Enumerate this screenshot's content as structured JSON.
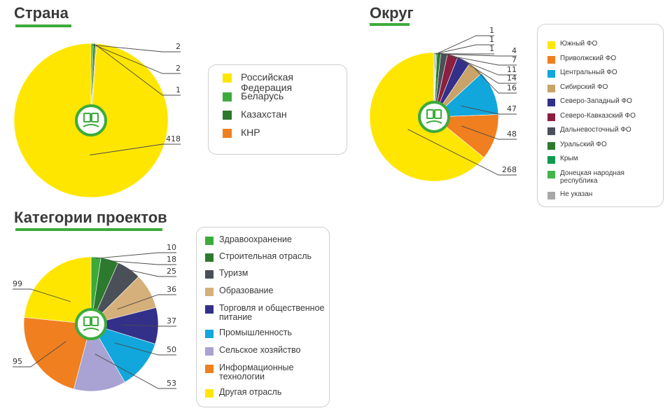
{
  "titles": {
    "country": "Страна",
    "district": "Округ",
    "category": "Категории проектов"
  },
  "chart_data": [
    {
      "type": "pie",
      "title": "Страна",
      "categories": [
        "Российская Федерация",
        "Беларусь",
        "Казахстан",
        "КНР"
      ],
      "values": [
        418,
        2,
        2,
        1
      ],
      "colors": [
        "#ffe600",
        "#3cab3b",
        "#2d7a2e",
        "#f07f1f"
      ],
      "labels": [
        "418",
        "2",
        "2",
        "1"
      ],
      "legend": [
        "Российская Федерация",
        "Беларусь",
        "Казахстан",
        "КНР"
      ],
      "legend_placement": "right"
    },
    {
      "type": "pie",
      "title": "Округ",
      "categories": [
        "Южный ФО",
        "Приволжский ФО",
        "Центральный ФО",
        "Сибирский ФО",
        "Северо-Западный ФО",
        "Северо-Кавказский ФО",
        "Дальневосточный ФО",
        "Уральский ФО",
        "Крым",
        "Донецкая народная республика",
        "Не указан"
      ],
      "values": [
        268,
        48,
        47,
        16,
        14,
        11,
        7,
        4,
        1,
        1,
        1
      ],
      "colors": [
        "#ffe600",
        "#f07f1f",
        "#11a6dc",
        "#c9a367",
        "#33308a",
        "#8a1f3f",
        "#4a5057",
        "#2d7a2e",
        "#109a4c",
        "#45b549",
        "#a8a8a8"
      ],
      "labels": [
        "268",
        "48",
        "47",
        "16",
        "14",
        "11",
        "7",
        "4",
        "1",
        "1",
        "1"
      ],
      "legend": [
        "Южный ФО",
        "Приволжский ФО",
        "Центральный ФО",
        "Сибирский ФО",
        "Северо-Западный ФО",
        "Северо-Кавказский ФО",
        "Дальневосточный ФО",
        "Уральский ФО",
        "Крым",
        "Донецкая народная республика",
        "Не указан"
      ],
      "legend_placement": "right"
    },
    {
      "type": "pie",
      "title": "Категории проектов",
      "categories": [
        "Здравоохранение",
        "Строительная отрасль",
        "Туризм",
        "Образование",
        "Торговля и общественное питание",
        "Промышленность",
        "Сельское хозяйство",
        "Информационные технологии",
        "Другая отрасль"
      ],
      "values": [
        10,
        18,
        25,
        36,
        37,
        50,
        53,
        95,
        99
      ],
      "colors": [
        "#3cab3b",
        "#2d7a2e",
        "#4a5057",
        "#d5b07a",
        "#33308a",
        "#11a6dc",
        "#a9a3d4",
        "#f07f1f",
        "#ffe600"
      ],
      "labels": [
        "10",
        "18",
        "25",
        "36",
        "37",
        "50",
        "53",
        "95",
        "99"
      ],
      "legend": [
        "Здравоохранение",
        "Строительная отрасль",
        "Туризм",
        "Образование",
        "Торговля и общественное питание",
        "Промышленность",
        "Сельское хозяйство",
        "Информационные технологии",
        "Другая отрасль"
      ],
      "legend_placement": "right"
    }
  ]
}
